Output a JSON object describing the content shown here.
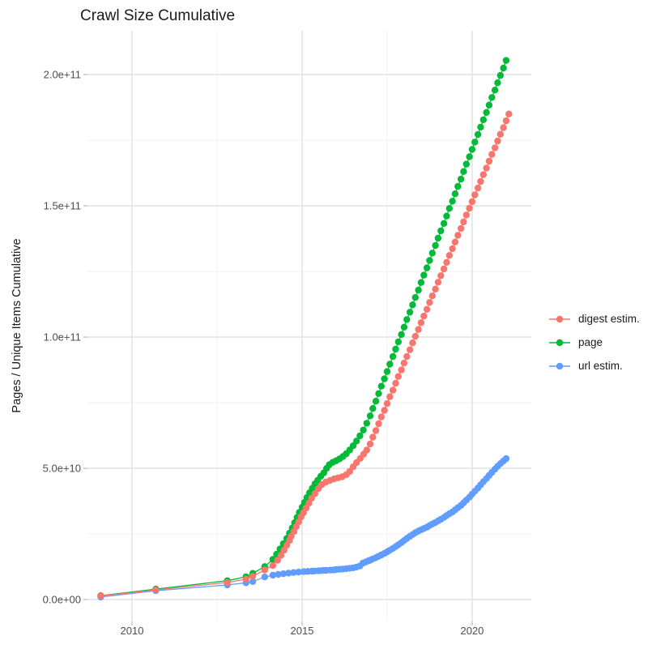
{
  "page": {
    "background": "#FFFFFF"
  },
  "chart_data": {
    "type": "scatter",
    "title": "Crawl Size Cumulative",
    "xlabel": "",
    "ylabel": "Pages / Unique Items Cumulative",
    "legend_position": "right",
    "grid": true,
    "value_unit_e9": 1000000000,
    "note_units": "point values below are in billions (1e9) of items; years are decimal",
    "xlim": [
      2008.69,
      2021.74
    ],
    "ylim_e9": [
      -8.3,
      216.7
    ],
    "x_ticks": [
      {
        "value": 2010,
        "label": "2010"
      },
      {
        "value": 2015,
        "label": "2015"
      },
      {
        "value": 2020,
        "label": "2020"
      }
    ],
    "x_minor_ticks": [
      2012.5,
      2017.5
    ],
    "y_ticks_e9": [
      {
        "value": 0,
        "label": "0.0e+00"
      },
      {
        "value": 50,
        "label": "5.0e+10"
      },
      {
        "value": 100,
        "label": "1.0e+11"
      },
      {
        "value": 150,
        "label": "1.5e+11"
      },
      {
        "value": 200,
        "label": "2.0e+11"
      }
    ],
    "y_minor_ticks_e9": [
      25,
      75,
      125,
      175
    ],
    "colors": {
      "grid_major": "#E4E4E4",
      "grid_minor": "#F0F0F0",
      "tick": "#C2C2C2",
      "axis_text": "#4D4D4D",
      "title_text": "#1A1A1A"
    },
    "draw_order": [
      "url estim.",
      "page",
      "digest estim."
    ],
    "series": [
      {
        "name": "digest estim.",
        "color": "#F8766D",
        "points_year_value_e9": [
          [
            2009.08,
            1.4
          ],
          [
            2010.7,
            3.7
          ],
          [
            2012.8,
            6.5
          ],
          [
            2013.35,
            7.8
          ],
          [
            2013.55,
            8.9
          ],
          [
            2013.9,
            11.3
          ],
          [
            2014.14,
            13.0
          ],
          [
            2014.28,
            15.0
          ],
          [
            2014.38,
            16.9
          ],
          [
            2014.47,
            18.8
          ],
          [
            2014.55,
            20.7
          ],
          [
            2014.63,
            22.5
          ],
          [
            2014.68,
            24.1
          ],
          [
            2014.76,
            25.9
          ],
          [
            2014.83,
            27.8
          ],
          [
            2014.9,
            29.6
          ],
          [
            2014.97,
            31.5
          ],
          [
            2015.04,
            33.1
          ],
          [
            2015.12,
            34.9
          ],
          [
            2015.2,
            36.7
          ],
          [
            2015.28,
            38.6
          ],
          [
            2015.38,
            40.4
          ],
          [
            2015.48,
            42.3
          ],
          [
            2015.58,
            43.8
          ],
          [
            2015.7,
            44.8
          ],
          [
            2015.82,
            45.4
          ],
          [
            2015.94,
            46.0
          ],
          [
            2016.06,
            46.4
          ],
          [
            2016.18,
            46.8
          ],
          [
            2016.3,
            47.6
          ],
          [
            2016.4,
            48.8
          ],
          [
            2016.5,
            50.6
          ],
          [
            2016.6,
            52.2
          ],
          [
            2016.71,
            53.8
          ],
          [
            2016.81,
            55.4
          ],
          [
            2016.9,
            57.0
          ],
          [
            2017.0,
            59.3
          ],
          [
            2017.08,
            61.9
          ],
          [
            2017.17,
            64.4
          ],
          [
            2017.25,
            67.0
          ],
          [
            2017.33,
            69.6
          ],
          [
            2017.42,
            72.1
          ],
          [
            2017.5,
            74.7
          ],
          [
            2017.58,
            77.3
          ],
          [
            2017.67,
            79.8
          ],
          [
            2017.75,
            82.4
          ],
          [
            2017.83,
            85.0
          ],
          [
            2017.92,
            87.5
          ],
          [
            2018.0,
            90.1
          ],
          [
            2018.08,
            92.6
          ],
          [
            2018.17,
            95.2
          ],
          [
            2018.25,
            97.8
          ],
          [
            2018.33,
            100.3
          ],
          [
            2018.42,
            102.9
          ],
          [
            2018.5,
            105.5
          ],
          [
            2018.58,
            108.0
          ],
          [
            2018.67,
            110.6
          ],
          [
            2018.75,
            113.2
          ],
          [
            2018.83,
            115.7
          ],
          [
            2018.92,
            118.3
          ],
          [
            2019.0,
            120.9
          ],
          [
            2019.08,
            123.4
          ],
          [
            2019.17,
            126.0
          ],
          [
            2019.25,
            128.5
          ],
          [
            2019.33,
            131.1
          ],
          [
            2019.42,
            133.7
          ],
          [
            2019.5,
            136.2
          ],
          [
            2019.58,
            138.8
          ],
          [
            2019.67,
            141.4
          ],
          [
            2019.75,
            143.9
          ],
          [
            2019.83,
            146.5
          ],
          [
            2019.92,
            149.1
          ],
          [
            2020.0,
            151.6
          ],
          [
            2020.08,
            154.2
          ],
          [
            2020.17,
            156.8
          ],
          [
            2020.25,
            159.3
          ],
          [
            2020.33,
            161.9
          ],
          [
            2020.42,
            164.4
          ],
          [
            2020.5,
            167.0
          ],
          [
            2020.58,
            169.6
          ],
          [
            2020.67,
            172.1
          ],
          [
            2020.75,
            174.7
          ],
          [
            2020.83,
            177.3
          ],
          [
            2020.92,
            179.8
          ],
          [
            2021.0,
            182.4
          ],
          [
            2021.08,
            185.0
          ]
        ]
      },
      {
        "name": "page",
        "color": "#00BA38",
        "points_year_value_e9": [
          [
            2009.08,
            1.5
          ],
          [
            2010.7,
            4.0
          ],
          [
            2012.8,
            7.2
          ],
          [
            2013.35,
            8.7
          ],
          [
            2013.55,
            10.0
          ],
          [
            2013.9,
            12.6
          ],
          [
            2014.14,
            15.3
          ],
          [
            2014.25,
            17.3
          ],
          [
            2014.35,
            19.3
          ],
          [
            2014.45,
            21.3
          ],
          [
            2014.55,
            23.3
          ],
          [
            2014.63,
            25.3
          ],
          [
            2014.71,
            27.3
          ],
          [
            2014.78,
            29.3
          ],
          [
            2014.85,
            31.3
          ],
          [
            2014.92,
            33.2
          ],
          [
            2015.0,
            35.2
          ],
          [
            2015.07,
            37.0
          ],
          [
            2015.14,
            38.9
          ],
          [
            2015.22,
            40.7
          ],
          [
            2015.3,
            42.4
          ],
          [
            2015.38,
            44.1
          ],
          [
            2015.46,
            45.5
          ],
          [
            2015.55,
            47.0
          ],
          [
            2015.64,
            48.3
          ],
          [
            2015.72,
            50.0
          ],
          [
            2015.8,
            51.4
          ],
          [
            2015.9,
            52.3
          ],
          [
            2016.0,
            52.9
          ],
          [
            2016.1,
            53.6
          ],
          [
            2016.2,
            54.5
          ],
          [
            2016.3,
            55.6
          ],
          [
            2016.4,
            57.0
          ],
          [
            2016.5,
            58.6
          ],
          [
            2016.6,
            60.4
          ],
          [
            2016.7,
            62.4
          ],
          [
            2016.8,
            64.6
          ],
          [
            2016.9,
            67.2
          ],
          [
            2017.0,
            70.0
          ],
          [
            2017.08,
            72.8
          ],
          [
            2017.17,
            75.6
          ],
          [
            2017.25,
            78.5
          ],
          [
            2017.33,
            81.3
          ],
          [
            2017.42,
            84.1
          ],
          [
            2017.5,
            86.9
          ],
          [
            2017.58,
            89.7
          ],
          [
            2017.67,
            92.6
          ],
          [
            2017.75,
            95.4
          ],
          [
            2017.83,
            98.2
          ],
          [
            2017.92,
            101.0
          ],
          [
            2018.0,
            103.8
          ],
          [
            2018.08,
            106.7
          ],
          [
            2018.17,
            109.5
          ],
          [
            2018.25,
            112.3
          ],
          [
            2018.33,
            115.1
          ],
          [
            2018.42,
            117.9
          ],
          [
            2018.5,
            120.8
          ],
          [
            2018.58,
            123.6
          ],
          [
            2018.67,
            126.4
          ],
          [
            2018.75,
            129.2
          ],
          [
            2018.83,
            132.0
          ],
          [
            2018.92,
            134.9
          ],
          [
            2019.0,
            137.7
          ],
          [
            2019.08,
            140.5
          ],
          [
            2019.17,
            143.3
          ],
          [
            2019.25,
            146.1
          ],
          [
            2019.33,
            149.0
          ],
          [
            2019.42,
            151.8
          ],
          [
            2019.5,
            154.6
          ],
          [
            2019.58,
            157.4
          ],
          [
            2019.67,
            160.2
          ],
          [
            2019.75,
            163.1
          ],
          [
            2019.83,
            165.9
          ],
          [
            2019.92,
            168.7
          ],
          [
            2020.0,
            171.5
          ],
          [
            2020.08,
            174.3
          ],
          [
            2020.17,
            177.2
          ],
          [
            2020.25,
            180.0
          ],
          [
            2020.33,
            182.8
          ],
          [
            2020.42,
            185.6
          ],
          [
            2020.5,
            188.4
          ],
          [
            2020.58,
            191.3
          ],
          [
            2020.67,
            194.1
          ],
          [
            2020.75,
            196.9
          ],
          [
            2020.83,
            199.7
          ],
          [
            2020.92,
            202.5
          ],
          [
            2021.0,
            205.4
          ]
        ]
      },
      {
        "name": "url estim.",
        "color": "#619CFF",
        "points_year_value_e9": [
          [
            2009.08,
            1.0
          ],
          [
            2010.7,
            3.4
          ],
          [
            2012.8,
            5.6
          ],
          [
            2013.35,
            6.4
          ],
          [
            2013.55,
            6.9
          ],
          [
            2013.9,
            8.6
          ],
          [
            2014.14,
            9.3
          ],
          [
            2014.3,
            9.6
          ],
          [
            2014.45,
            9.85
          ],
          [
            2014.6,
            10.1
          ],
          [
            2014.75,
            10.3
          ],
          [
            2014.9,
            10.5
          ],
          [
            2015.05,
            10.65
          ],
          [
            2015.17,
            10.75
          ],
          [
            2015.29,
            10.85
          ],
          [
            2015.37,
            10.9
          ],
          [
            2015.48,
            11.0
          ],
          [
            2015.57,
            11.05
          ],
          [
            2015.64,
            11.1
          ],
          [
            2015.71,
            11.15
          ],
          [
            2015.83,
            11.25
          ],
          [
            2015.93,
            11.3
          ],
          [
            2016.0,
            11.45
          ],
          [
            2016.1,
            11.55
          ],
          [
            2016.2,
            11.65
          ],
          [
            2016.3,
            11.8
          ],
          [
            2016.4,
            11.95
          ],
          [
            2016.5,
            12.1
          ],
          [
            2016.6,
            12.4
          ],
          [
            2016.7,
            12.8
          ],
          [
            2016.79,
            13.9
          ],
          [
            2016.88,
            14.4
          ],
          [
            2016.95,
            14.8
          ],
          [
            2017.0,
            15.0
          ],
          [
            2017.08,
            15.5
          ],
          [
            2017.17,
            16.0
          ],
          [
            2017.25,
            16.5
          ],
          [
            2017.33,
            17.0
          ],
          [
            2017.42,
            17.6
          ],
          [
            2017.5,
            18.2
          ],
          [
            2017.58,
            18.8
          ],
          [
            2017.67,
            19.5
          ],
          [
            2017.75,
            20.2
          ],
          [
            2017.83,
            20.9
          ],
          [
            2017.92,
            21.7
          ],
          [
            2018.0,
            22.5
          ],
          [
            2018.08,
            23.3
          ],
          [
            2018.17,
            24.1
          ],
          [
            2018.25,
            24.8
          ],
          [
            2018.33,
            25.5
          ],
          [
            2018.42,
            26.1
          ],
          [
            2018.5,
            26.6
          ],
          [
            2018.58,
            27.1
          ],
          [
            2018.67,
            27.6
          ],
          [
            2018.75,
            28.2
          ],
          [
            2018.83,
            28.8
          ],
          [
            2018.92,
            29.4
          ],
          [
            2019.0,
            30.0
          ],
          [
            2019.08,
            30.6
          ],
          [
            2019.17,
            31.3
          ],
          [
            2019.25,
            32.0
          ],
          [
            2019.33,
            32.7
          ],
          [
            2019.42,
            33.4
          ],
          [
            2019.5,
            34.2
          ],
          [
            2019.58,
            35.0
          ],
          [
            2019.67,
            35.9
          ],
          [
            2019.75,
            36.9
          ],
          [
            2019.83,
            37.9
          ],
          [
            2019.92,
            39.0
          ],
          [
            2020.0,
            40.2
          ],
          [
            2020.08,
            41.3
          ],
          [
            2020.17,
            42.5
          ],
          [
            2020.25,
            43.7
          ],
          [
            2020.33,
            44.9
          ],
          [
            2020.42,
            46.1
          ],
          [
            2020.5,
            47.3
          ],
          [
            2020.58,
            48.5
          ],
          [
            2020.67,
            49.7
          ],
          [
            2020.75,
            50.8
          ],
          [
            2020.83,
            51.8
          ],
          [
            2020.92,
            52.8
          ],
          [
            2021.0,
            53.7
          ]
        ]
      }
    ]
  }
}
